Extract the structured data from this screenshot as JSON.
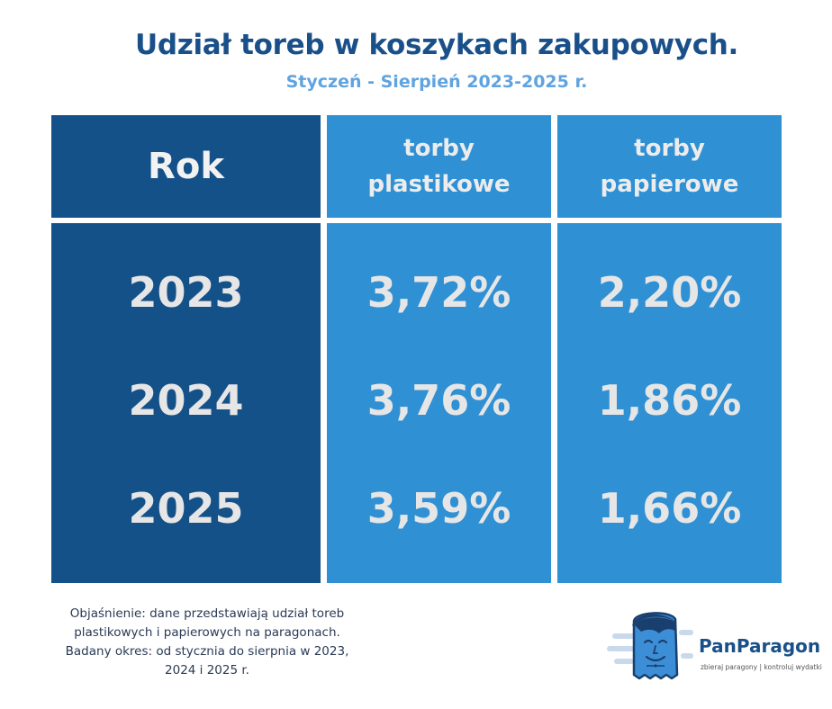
{
  "title": "Udział toreb w koszykach zakupowych.",
  "subtitle": "Styczeń - Sierpień 2023-2025 r.",
  "chart_data": {
    "type": "table",
    "columns": [
      "Rok",
      "torby plastikowe",
      "torby papierowe"
    ],
    "header": {
      "year": "Rok",
      "plastic_line1": "torby",
      "plastic_line2": "plastikowe",
      "paper_line1": "torby",
      "paper_line2": "papierowe"
    },
    "rows": [
      {
        "year": "2023",
        "plastic": "3,72%",
        "paper": "2,20%"
      },
      {
        "year": "2024",
        "plastic": "3,76%",
        "paper": "1,86%"
      },
      {
        "year": "2025",
        "plastic": "3,59%",
        "paper": "1,66%"
      }
    ],
    "colors": {
      "year_column": "#155189",
      "value_columns": "#2f90d4",
      "title": "#1a5089",
      "subtitle": "#5fa3e0"
    }
  },
  "note": {
    "line1": "Objaśnienie: dane przedstawiają udział toreb",
    "line2": "plastikowych i papierowych na paragonach.",
    "line3": "Badany okres: od stycznia do sierpnia w 2023,",
    "line4": "2024 i 2025 r."
  },
  "logo": {
    "brand": "PanParagon",
    "tagline": "zbieraj paragony | kontroluj wydatki",
    "icon": "receipt-mascot-icon"
  }
}
